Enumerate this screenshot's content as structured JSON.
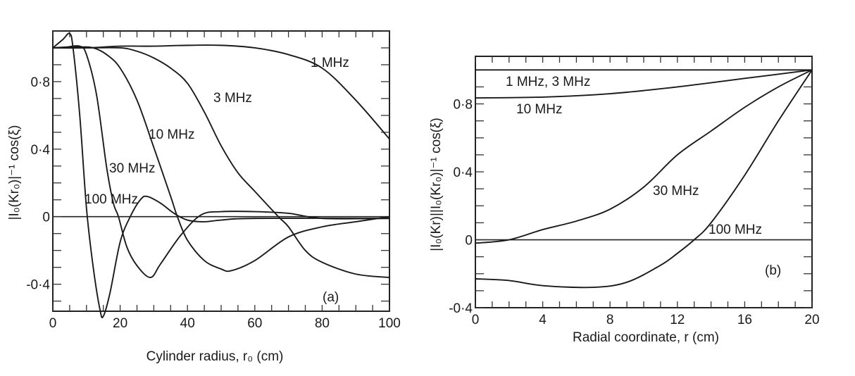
{
  "chart_data": [
    {
      "type": "line",
      "panel_label": "(a)",
      "xlabel": "Cylinder radius, r₀ (cm)",
      "ylabel": "|I₀(Kr₀)|⁻¹ cos(ξ)",
      "xlim": [
        0,
        100
      ],
      "ylim": [
        -0.56,
        1.1
      ],
      "xticks": [
        0,
        20,
        40,
        60,
        80,
        100
      ],
      "xtick_labels": [
        "0",
        "20",
        "40",
        "60",
        "80",
        "100"
      ],
      "yticks": [
        -0.4,
        0,
        0.4,
        0.8
      ],
      "ytick_labels": [
        "-0·4",
        "0",
        "0·4",
        "0·8"
      ],
      "grid": false,
      "zero_line": true,
      "series": [
        {
          "name": "1 MHz",
          "x": [
            0,
            10,
            20,
            30,
            40,
            50,
            60,
            70,
            80,
            90,
            100
          ],
          "y": [
            1.0,
            1.0,
            1.01,
            1.01,
            1.015,
            1.015,
            1.0,
            0.96,
            0.88,
            0.69,
            0.46
          ]
        },
        {
          "name": "3 MHz",
          "x": [
            0,
            10,
            20,
            25,
            30,
            35,
            40,
            45,
            50,
            55,
            60,
            67,
            70,
            75,
            80,
            90,
            100
          ],
          "y": [
            1.0,
            1.0,
            1.0,
            0.98,
            0.94,
            0.88,
            0.79,
            0.62,
            0.42,
            0.26,
            0.15,
            0.0,
            -0.06,
            -0.2,
            -0.27,
            -0.34,
            -0.36
          ]
        },
        {
          "name": "10 MHz",
          "x": [
            0,
            8,
            12,
            16,
            20,
            25,
            30,
            35,
            37,
            40,
            45,
            50,
            53,
            60,
            70,
            80,
            90,
            100
          ],
          "y": [
            1.0,
            1.005,
            1.0,
            0.96,
            0.88,
            0.69,
            0.41,
            0.12,
            0.0,
            -0.14,
            -0.26,
            -0.31,
            -0.32,
            -0.26,
            -0.12,
            -0.06,
            -0.03,
            0.0
          ]
        },
        {
          "name": "30 MHz",
          "x": [
            0,
            4,
            8,
            10,
            13,
            16,
            18,
            19.5,
            22,
            25,
            29,
            32,
            38,
            44,
            50,
            60,
            70,
            80,
            100
          ],
          "y": [
            1.0,
            1.005,
            1.01,
            0.96,
            0.72,
            0.29,
            0.08,
            0.0,
            -0.18,
            -0.29,
            -0.36,
            -0.28,
            -0.11,
            0.01,
            0.03,
            0.03,
            0.02,
            -0.01,
            -0.01
          ]
        },
        {
          "name": "100 MHz",
          "x": [
            0,
            3,
            5,
            6,
            8,
            10,
            12,
            14,
            15,
            17,
            20,
            23,
            26,
            28,
            32,
            36,
            40,
            45,
            50,
            60,
            100
          ],
          "y": [
            1.0,
            1.05,
            1.085,
            1.0,
            0.6,
            0.05,
            -0.3,
            -0.55,
            -0.59,
            -0.45,
            -0.15,
            0.0,
            0.1,
            0.12,
            0.08,
            0.02,
            -0.02,
            -0.03,
            -0.02,
            -0.01,
            -0.01
          ]
        }
      ]
    },
    {
      "type": "line",
      "panel_label": "(b)",
      "xlabel": "Radial coordinate, r (cm)",
      "ylabel": "|I₀(Kr)||I₀(Kr₀)|⁻¹ cos(ξ)",
      "xlim": [
        0,
        20
      ],
      "ylim": [
        -0.4,
        1.08
      ],
      "xticks": [
        0,
        4,
        8,
        12,
        16,
        20
      ],
      "xtick_labels": [
        "0",
        "4",
        "8",
        "12",
        "16",
        "20"
      ],
      "yticks": [
        -0.4,
        0,
        0.4,
        0.8
      ],
      "ytick_labels": [
        "-0·4",
        "0",
        "0·4",
        "0·8"
      ],
      "grid": false,
      "zero_line": true,
      "series": [
        {
          "name": "1 MHz, 3 MHz",
          "x": [
            0,
            20
          ],
          "y": [
            1.0,
            1.0
          ]
        },
        {
          "name": "10 MHz",
          "x": [
            0,
            4,
            8,
            12,
            16,
            20
          ],
          "y": [
            0.835,
            0.84,
            0.86,
            0.9,
            0.95,
            1.0
          ]
        },
        {
          "name": "30 MHz",
          "x": [
            0,
            2,
            4,
            6,
            8,
            10,
            12,
            14,
            16,
            18,
            20
          ],
          "y": [
            -0.02,
            0.0,
            0.06,
            0.11,
            0.18,
            0.31,
            0.5,
            0.64,
            0.78,
            0.9,
            1.0
          ]
        },
        {
          "name": "100 MHz",
          "x": [
            0,
            2,
            4,
            7,
            9,
            11,
            12,
            13,
            14,
            16,
            18,
            20
          ],
          "y": [
            -0.23,
            -0.24,
            -0.27,
            -0.28,
            -0.25,
            -0.15,
            -0.08,
            0.0,
            0.1,
            0.38,
            0.7,
            1.0
          ]
        }
      ]
    }
  ]
}
